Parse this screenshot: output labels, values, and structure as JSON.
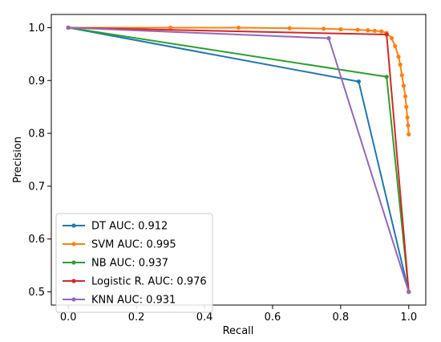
{
  "chart_data": {
    "type": "line",
    "title": "",
    "xlabel": "Recall",
    "ylabel": "Precision",
    "xlim": [
      -0.05,
      1.05
    ],
    "ylim": [
      0.475,
      1.025
    ],
    "xticks": [
      "0.0",
      "0.2",
      "0.4",
      "0.6",
      "0.8",
      "1.0"
    ],
    "yticks": [
      "0.5",
      "0.6",
      "0.7",
      "0.8",
      "0.9",
      "1.0"
    ],
    "legend_position": "lower-left",
    "grid": false,
    "series": [
      {
        "name": "DT AUC:  0.912",
        "color": "#1f77b4",
        "x": [
          0.0,
          0.853,
          1.0
        ],
        "y": [
          1.0,
          0.898,
          0.5
        ]
      },
      {
        "name": "SVM AUC:  0.995",
        "color": "#ff7f0e",
        "x": [
          0.0,
          0.3,
          0.5,
          0.65,
          0.75,
          0.8,
          0.85,
          0.88,
          0.9,
          0.92,
          0.935,
          0.95,
          0.96,
          0.97,
          0.975,
          0.98,
          0.985,
          0.99,
          0.993,
          0.996,
          0.998,
          1.0
        ],
        "y": [
          1.0,
          1.0,
          1.0,
          0.999,
          0.998,
          0.997,
          0.996,
          0.995,
          0.994,
          0.993,
          0.99,
          0.98,
          0.965,
          0.945,
          0.93,
          0.91,
          0.89,
          0.87,
          0.85,
          0.83,
          0.815,
          0.798
        ]
      },
      {
        "name": "NB AUC:  0.937",
        "color": "#2ca02c",
        "x": [
          0.0,
          0.935,
          1.0
        ],
        "y": [
          1.0,
          0.907,
          0.5
        ]
      },
      {
        "name": "Logistic R. AUC:  0.976",
        "color": "#d62728",
        "x": [
          0.0,
          0.935,
          1.0
        ],
        "y": [
          1.0,
          0.987,
          0.5
        ]
      },
      {
        "name": "KNN AUC:  0.931",
        "color": "#9467bd",
        "x": [
          0.0,
          0.765,
          1.0
        ],
        "y": [
          1.0,
          0.98,
          0.5
        ]
      }
    ]
  }
}
